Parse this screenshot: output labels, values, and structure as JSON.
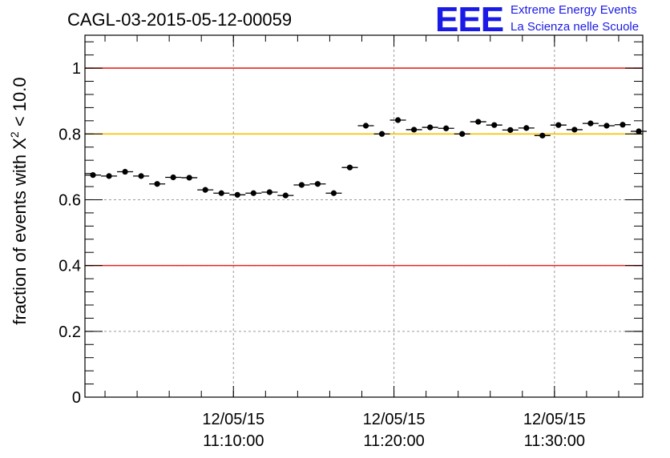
{
  "chart_data": {
    "type": "scatter",
    "title": "CAGL-03-2015-05-12-00059",
    "ylabel_prefix": "fraction of events with X",
    "ylabel_sup": "2",
    "ylabel_suffix": " < 10.0",
    "ylim": [
      0,
      1.1
    ],
    "yticks": [
      0,
      0.2,
      0.4,
      0.6,
      0.8,
      1
    ],
    "ytick_labels": [
      "0",
      "0.2",
      "0.4",
      "0.6",
      "0.8",
      "1"
    ],
    "xlim": [
      "2015-05-12 11:00:45",
      "2015-05-12 11:35:30"
    ],
    "xticks": [
      {
        "time": "2015-05-12 11:10:00",
        "date": "12/05/15",
        "clock": "11:10:00"
      },
      {
        "time": "2015-05-12 11:20:00",
        "date": "12/05/15",
        "clock": "11:20:00"
      },
      {
        "time": "2015-05-12 11:30:00",
        "date": "12/05/15",
        "clock": "11:30:00"
      }
    ],
    "grid": true,
    "reference_lines": [
      {
        "y": 1.0,
        "color": "#e8261f"
      },
      {
        "y": 0.8,
        "color": "#f7c100"
      },
      {
        "y": 0.4,
        "color": "#e8261f"
      }
    ],
    "marker_color": "#000000",
    "series": [
      {
        "x": [
          "2015-05-12 11:01:15",
          "2015-05-12 11:02:15",
          "2015-05-12 11:03:15",
          "2015-05-12 11:04:15",
          "2015-05-12 11:05:15",
          "2015-05-12 11:06:15",
          "2015-05-12 11:07:15",
          "2015-05-12 11:08:15",
          "2015-05-12 11:09:15",
          "2015-05-12 11:10:15",
          "2015-05-12 11:11:15",
          "2015-05-12 11:12:15",
          "2015-05-12 11:13:15",
          "2015-05-12 11:14:15",
          "2015-05-12 11:15:15",
          "2015-05-12 11:16:15",
          "2015-05-12 11:17:15",
          "2015-05-12 11:18:15",
          "2015-05-12 11:19:15",
          "2015-05-12 11:20:15",
          "2015-05-12 11:21:15",
          "2015-05-12 11:22:15",
          "2015-05-12 11:23:15",
          "2015-05-12 11:24:15",
          "2015-05-12 11:25:15",
          "2015-05-12 11:26:15",
          "2015-05-12 11:27:15",
          "2015-05-12 11:28:15",
          "2015-05-12 11:29:15",
          "2015-05-12 11:30:15",
          "2015-05-12 11:31:15",
          "2015-05-12 11:32:15",
          "2015-05-12 11:33:15",
          "2015-05-12 11:34:15",
          "2015-05-12 11:35:15"
        ],
        "y": [
          0.675,
          0.672,
          0.685,
          0.672,
          0.648,
          0.668,
          0.667,
          0.63,
          0.62,
          0.615,
          0.62,
          0.623,
          0.613,
          0.645,
          0.648,
          0.62,
          0.698,
          0.825,
          0.8,
          0.842,
          0.813,
          0.82,
          0.817,
          0.8,
          0.837,
          0.827,
          0.812,
          0.818,
          0.795,
          0.827,
          0.813,
          0.832,
          0.825,
          0.828,
          0.808
        ],
        "err": [
          0.008,
          0.008,
          0.008,
          0.008,
          0.008,
          0.008,
          0.008,
          0.008,
          0.008,
          0.008,
          0.008,
          0.008,
          0.008,
          0.008,
          0.008,
          0.008,
          0.008,
          0.008,
          0.008,
          0.008,
          0.008,
          0.008,
          0.008,
          0.008,
          0.008,
          0.008,
          0.008,
          0.008,
          0.008,
          0.008,
          0.008,
          0.008,
          0.008,
          0.008,
          0.008
        ]
      }
    ]
  },
  "logo": {
    "mark": "EEE",
    "line1": "Extreme Energy Events",
    "line2": "La Scienza nelle Scuole",
    "color": "#1a1ae6"
  }
}
